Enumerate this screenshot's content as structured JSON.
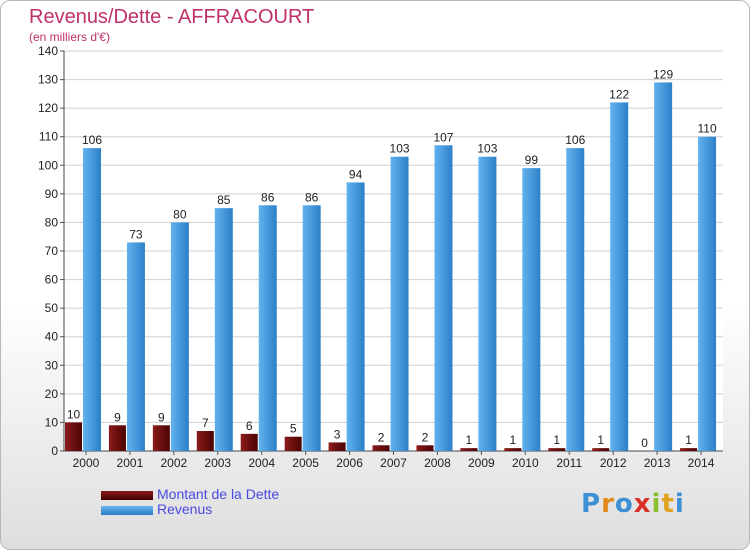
{
  "chart_data": {
    "type": "bar",
    "title": "Revenus/Dette - AFFRACOURT",
    "subtitle": "(en milliers d'€)",
    "categories": [
      "2000",
      "2001",
      "2002",
      "2003",
      "2004",
      "2005",
      "2006",
      "2007",
      "2008",
      "2009",
      "2010",
      "2011",
      "2012",
      "2013",
      "2014"
    ],
    "series": [
      {
        "name": "Montant de la Dette",
        "color": "#6b0a0a",
        "values": [
          10,
          9,
          9,
          7,
          6,
          5,
          3,
          2,
          2,
          1,
          1,
          1,
          1,
          0,
          1
        ]
      },
      {
        "name": "Revenus",
        "color": "#3d96de",
        "values": [
          106,
          73,
          80,
          85,
          86,
          86,
          94,
          103,
          107,
          103,
          99,
          106,
          122,
          129,
          110
        ]
      }
    ],
    "ylim": [
      0,
      140
    ],
    "yticks": [
      0,
      10,
      20,
      30,
      40,
      50,
      60,
      70,
      80,
      90,
      100,
      110,
      120,
      130,
      140
    ],
    "grid": true,
    "legend": "bottom-left"
  },
  "legend": {
    "items": [
      {
        "label": "Montant de la Dette",
        "color": "#6b0a0a"
      },
      {
        "label": "Revenus",
        "color": "#3d96de"
      }
    ]
  },
  "logo": {
    "text": "Proxiti"
  }
}
